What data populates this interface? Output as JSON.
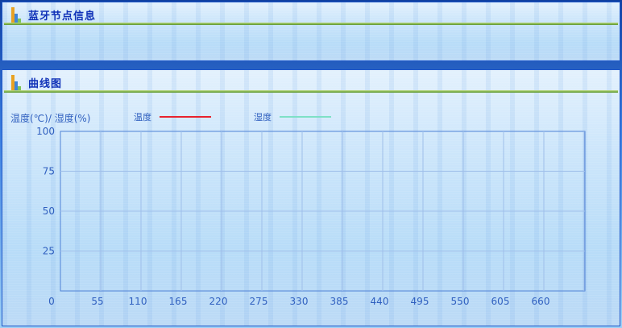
{
  "node_panel": {
    "title": "蓝牙节点信息",
    "icon": "bar-chart-icon"
  },
  "curve_panel": {
    "title": "曲线图",
    "icon": "bar-chart-icon",
    "axis_title": "温度(℃)/ 湿度(%)"
  },
  "chart_data": {
    "type": "line",
    "title": "",
    "xlabel": "",
    "ylabel": "温度(℃)/ 湿度(%)",
    "xlim": [
      0,
      715
    ],
    "ylim": [
      0,
      100
    ],
    "x_ticks": [
      "0",
      "55",
      "110",
      "165",
      "220",
      "275",
      "330",
      "385",
      "440",
      "495",
      "550",
      "605",
      "660"
    ],
    "y_ticks": [
      "100",
      "75",
      "50",
      "25"
    ],
    "grid": true,
    "series": [
      {
        "name": "温度",
        "color": "#e8222e",
        "values": []
      },
      {
        "name": "湿度",
        "color": "#7ee0c6",
        "values": []
      }
    ],
    "legend_position": "top"
  },
  "colors": {
    "title": "#1032b8",
    "axis_text": "#2f5fbf",
    "grid": "#9fbfea",
    "plot_border": "#4f82d6"
  }
}
